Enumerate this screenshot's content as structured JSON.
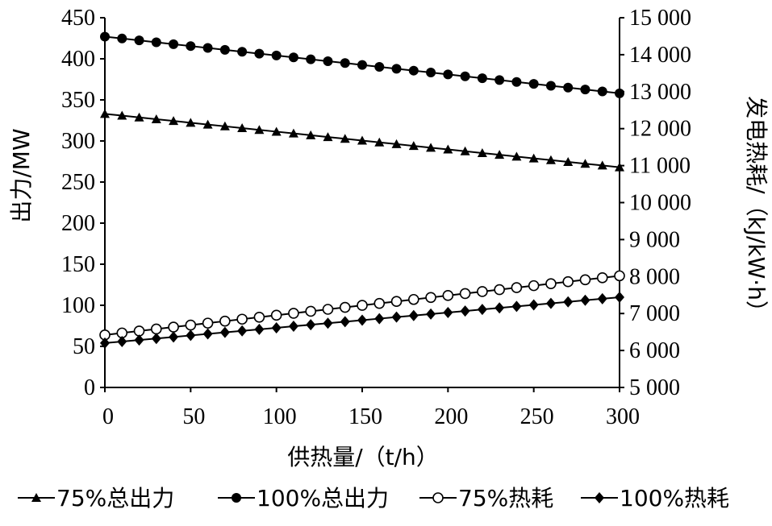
{
  "chart_data": {
    "type": "line",
    "xlabel": "供热量/（t/h）",
    "ylabel_left": "出力/MW",
    "ylabel_right": "发电热耗/（kJ/kW·h）",
    "xlim": [
      0,
      300
    ],
    "ylim_left": [
      0,
      450
    ],
    "ylim_right": [
      5000,
      15000
    ],
    "x_ticks": [
      "0",
      "50",
      "100",
      "150",
      "200",
      "250",
      "300"
    ],
    "y_left_ticks": [
      "0",
      "50",
      "100",
      "150",
      "200",
      "250",
      "300",
      "350",
      "400",
      "450"
    ],
    "y_right_ticks": [
      "5 000",
      "6 000",
      "7 000",
      "8 000",
      "9 000",
      "10 000",
      "11 000",
      "12 000",
      "13 000",
      "14 000",
      "15 000"
    ],
    "x": [
      0,
      10,
      20,
      30,
      40,
      50,
      60,
      70,
      80,
      90,
      100,
      110,
      120,
      130,
      140,
      150,
      160,
      170,
      180,
      190,
      200,
      210,
      220,
      230,
      240,
      250,
      260,
      270,
      280,
      290,
      300
    ],
    "grid": false,
    "legend_position": "bottom",
    "series": [
      {
        "name": "75%总出力",
        "axis": "left",
        "marker": "triangle",
        "line": {
          "from": [
            0,
            333
          ],
          "to": [
            300,
            268
          ]
        }
      },
      {
        "name": "100%总出力",
        "axis": "left",
        "marker": "filled-circle",
        "line": {
          "from": [
            0,
            427
          ],
          "to": [
            300,
            358
          ]
        }
      },
      {
        "name": "75%热耗",
        "axis": "right",
        "marker": "open-circle",
        "line": {
          "from": [
            0,
            6420
          ],
          "to": [
            300,
            8020
          ]
        }
      },
      {
        "name": "100%热耗",
        "axis": "right",
        "marker": "diamond",
        "line": {
          "from": [
            0,
            6200
          ],
          "to": [
            300,
            7440
          ]
        }
      }
    ]
  }
}
